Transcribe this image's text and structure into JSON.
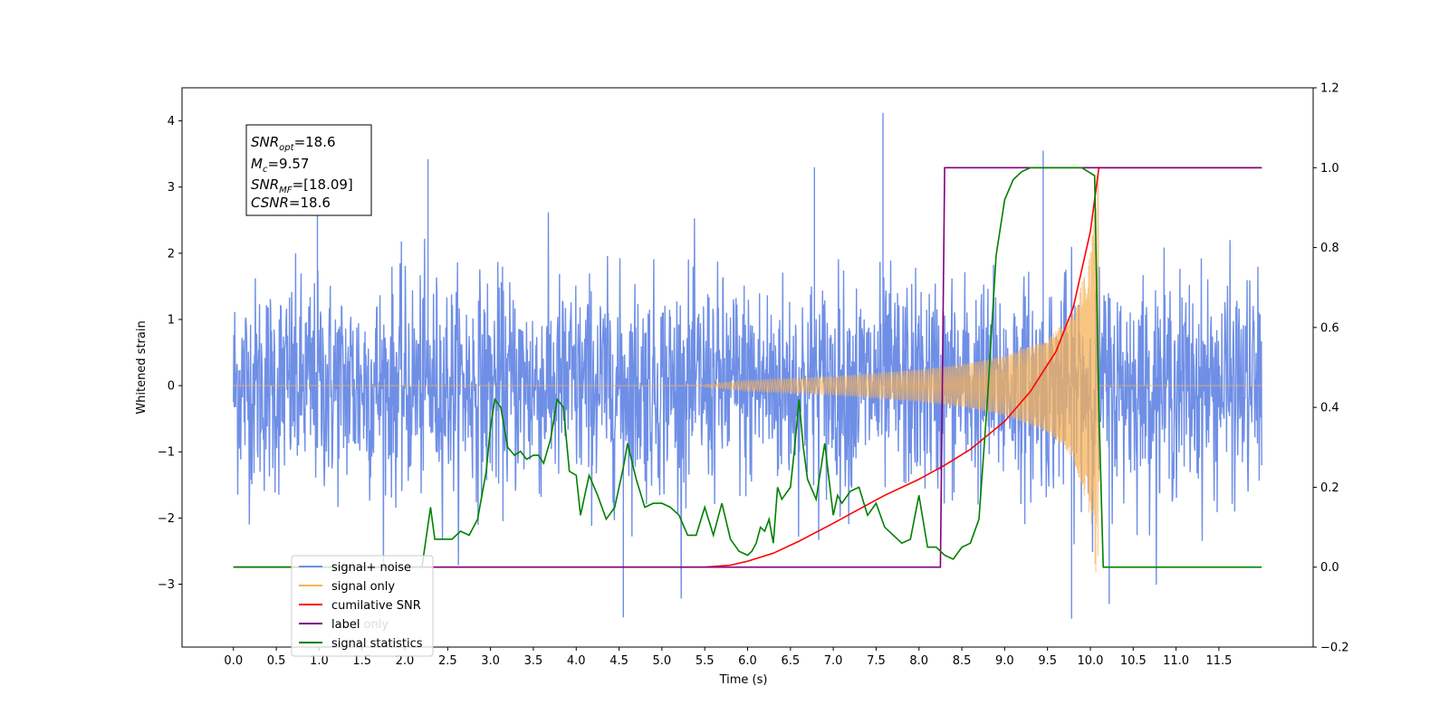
{
  "chart_data": {
    "type": "line",
    "xlabel": "Time (s)",
    "ylabel": "Whitened strain",
    "xlim": [
      -0.6,
      12.6
    ],
    "ylim": [
      -3.95,
      4.5
    ],
    "y2lim": [
      -0.2,
      1.2
    ],
    "grid": false,
    "legend_position": "lower-left",
    "x_ticks": [
      "0.0",
      "0.5",
      "1.0",
      "1.5",
      "2.0",
      "2.5",
      "3.0",
      "3.5",
      "4.0",
      "4.5",
      "5.0",
      "5.5",
      "6.0",
      "6.5",
      "7.0",
      "7.5",
      "8.0",
      "8.5",
      "9.0",
      "9.5",
      "10.0",
      "10.5",
      "11.0",
      "11.5"
    ],
    "x_tick_values": [
      0.0,
      0.5,
      1.0,
      1.5,
      2.0,
      2.5,
      3.0,
      3.5,
      4.0,
      4.5,
      5.0,
      5.5,
      6.0,
      6.5,
      7.0,
      7.5,
      8.0,
      8.5,
      9.0,
      9.5,
      10.0,
      10.5,
      11.0,
      11.5
    ],
    "y_ticks": [
      "−3",
      "−2",
      "−1",
      "0",
      "1",
      "2",
      "3",
      "4"
    ],
    "y_tick_values": [
      -3,
      -2,
      -1,
      0,
      1,
      2,
      3,
      4
    ],
    "y2_ticks": [
      "−0.2",
      "0.0",
      "0.2",
      "0.4",
      "0.6",
      "0.8",
      "1.0",
      "1.2"
    ],
    "y2_tick_values": [
      -0.2,
      0.0,
      0.2,
      0.4,
      0.6,
      0.8,
      1.0,
      1.2
    ],
    "info_box": [
      {
        "base": "SNR",
        "sub": "opt",
        "rest": "=18.6"
      },
      {
        "base": "M",
        "sub": "c",
        "rest": "=9.57"
      },
      {
        "base": "SNR",
        "sub": "MF",
        "rest": "=[18.09]"
      },
      {
        "base": "CSNR",
        "sub": "",
        "rest": "=18.6"
      }
    ],
    "series": [
      {
        "name": "signal+ noise",
        "color": "#6f8fe6",
        "axis": "left",
        "kind": "noise",
        "description_values": {
          "t_start": 0.0,
          "t_end": 12.0,
          "std": 0.8,
          "max": 4.12,
          "min": -3.52
        }
      },
      {
        "name": "signal only",
        "color": "#f5b25a",
        "axis": "left",
        "kind": "chirp",
        "description_values": {
          "t_start": 0.0,
          "t_merge": 10.1,
          "t_end": 12.0,
          "peak_amplitude": 3.3
        },
        "visible_envelope": [
          [
            5.5,
            0.02
          ],
          [
            6.0,
            0.08
          ],
          [
            7.0,
            0.14
          ],
          [
            8.0,
            0.24
          ],
          [
            8.5,
            0.32
          ],
          [
            9.0,
            0.45
          ],
          [
            9.5,
            0.7
          ],
          [
            9.8,
            1.1
          ],
          [
            10.0,
            2.0
          ],
          [
            10.1,
            3.3
          ]
        ]
      },
      {
        "name": "cumilative SNR",
        "color": "#ff0000",
        "axis": "right",
        "x": [
          0.0,
          5.5,
          5.8,
          6.0,
          6.3,
          6.6,
          7.0,
          7.3,
          7.6,
          8.0,
          8.3,
          8.6,
          9.0,
          9.3,
          9.6,
          9.8,
          10.0,
          10.05,
          10.1,
          12.0
        ],
        "y": [
          0.0,
          0.0,
          0.005,
          0.015,
          0.035,
          0.065,
          0.11,
          0.145,
          0.18,
          0.22,
          0.255,
          0.295,
          0.365,
          0.44,
          0.54,
          0.65,
          0.84,
          0.92,
          1.0,
          1.0
        ]
      },
      {
        "name": "label",
        "color": "#800080",
        "axis": "right",
        "x": [
          0.0,
          8.25,
          8.3,
          10.08,
          10.1,
          12.0
        ],
        "y": [
          0.0,
          0.0,
          1.0,
          1.0,
          1.0,
          1.0
        ]
      },
      {
        "name": "label only",
        "color": "#eeeeee",
        "axis": "right",
        "visible_line": false,
        "x": [],
        "y": []
      },
      {
        "name": "signal statistics",
        "color": "#008000",
        "axis": "right",
        "x": [
          0.0,
          2.2,
          2.3,
          2.35,
          2.45,
          2.55,
          2.65,
          2.75,
          2.85,
          2.95,
          3.0,
          3.05,
          3.12,
          3.2,
          3.28,
          3.35,
          3.42,
          3.5,
          3.56,
          3.62,
          3.7,
          3.78,
          3.85,
          3.92,
          4.0,
          4.05,
          4.15,
          4.25,
          4.35,
          4.45,
          4.55,
          4.6,
          4.7,
          4.8,
          4.9,
          5.0,
          5.1,
          5.2,
          5.3,
          5.4,
          5.5,
          5.6,
          5.7,
          5.8,
          5.9,
          6.0,
          6.05,
          6.1,
          6.15,
          6.2,
          6.25,
          6.3,
          6.35,
          6.4,
          6.5,
          6.55,
          6.6,
          6.65,
          6.7,
          6.8,
          6.9,
          7.0,
          7.05,
          7.1,
          7.2,
          7.3,
          7.4,
          7.5,
          7.6,
          7.7,
          7.8,
          7.9,
          8.0,
          8.1,
          8.2,
          8.3,
          8.4,
          8.5,
          8.6,
          8.7,
          8.8,
          8.9,
          9.0,
          9.1,
          9.2,
          9.3,
          9.5,
          9.7,
          9.9,
          10.05,
          10.1,
          10.15,
          12.0
        ],
        "y": [
          0.0,
          0.0,
          0.15,
          0.07,
          0.07,
          0.07,
          0.09,
          0.08,
          0.12,
          0.24,
          0.35,
          0.42,
          0.4,
          0.3,
          0.28,
          0.29,
          0.27,
          0.28,
          0.28,
          0.26,
          0.32,
          0.42,
          0.4,
          0.24,
          0.23,
          0.13,
          0.23,
          0.18,
          0.12,
          0.15,
          0.25,
          0.31,
          0.22,
          0.15,
          0.16,
          0.16,
          0.15,
          0.13,
          0.08,
          0.08,
          0.15,
          0.08,
          0.16,
          0.07,
          0.04,
          0.03,
          0.04,
          0.06,
          0.1,
          0.09,
          0.12,
          0.06,
          0.2,
          0.17,
          0.2,
          0.3,
          0.42,
          0.3,
          0.22,
          0.17,
          0.31,
          0.13,
          0.18,
          0.16,
          0.19,
          0.2,
          0.13,
          0.16,
          0.1,
          0.08,
          0.06,
          0.07,
          0.18,
          0.05,
          0.05,
          0.03,
          0.02,
          0.05,
          0.06,
          0.12,
          0.42,
          0.78,
          0.92,
          0.97,
          0.99,
          1.0,
          1.0,
          1.0,
          1.0,
          0.98,
          0.4,
          0.0,
          0.0
        ]
      }
    ]
  }
}
